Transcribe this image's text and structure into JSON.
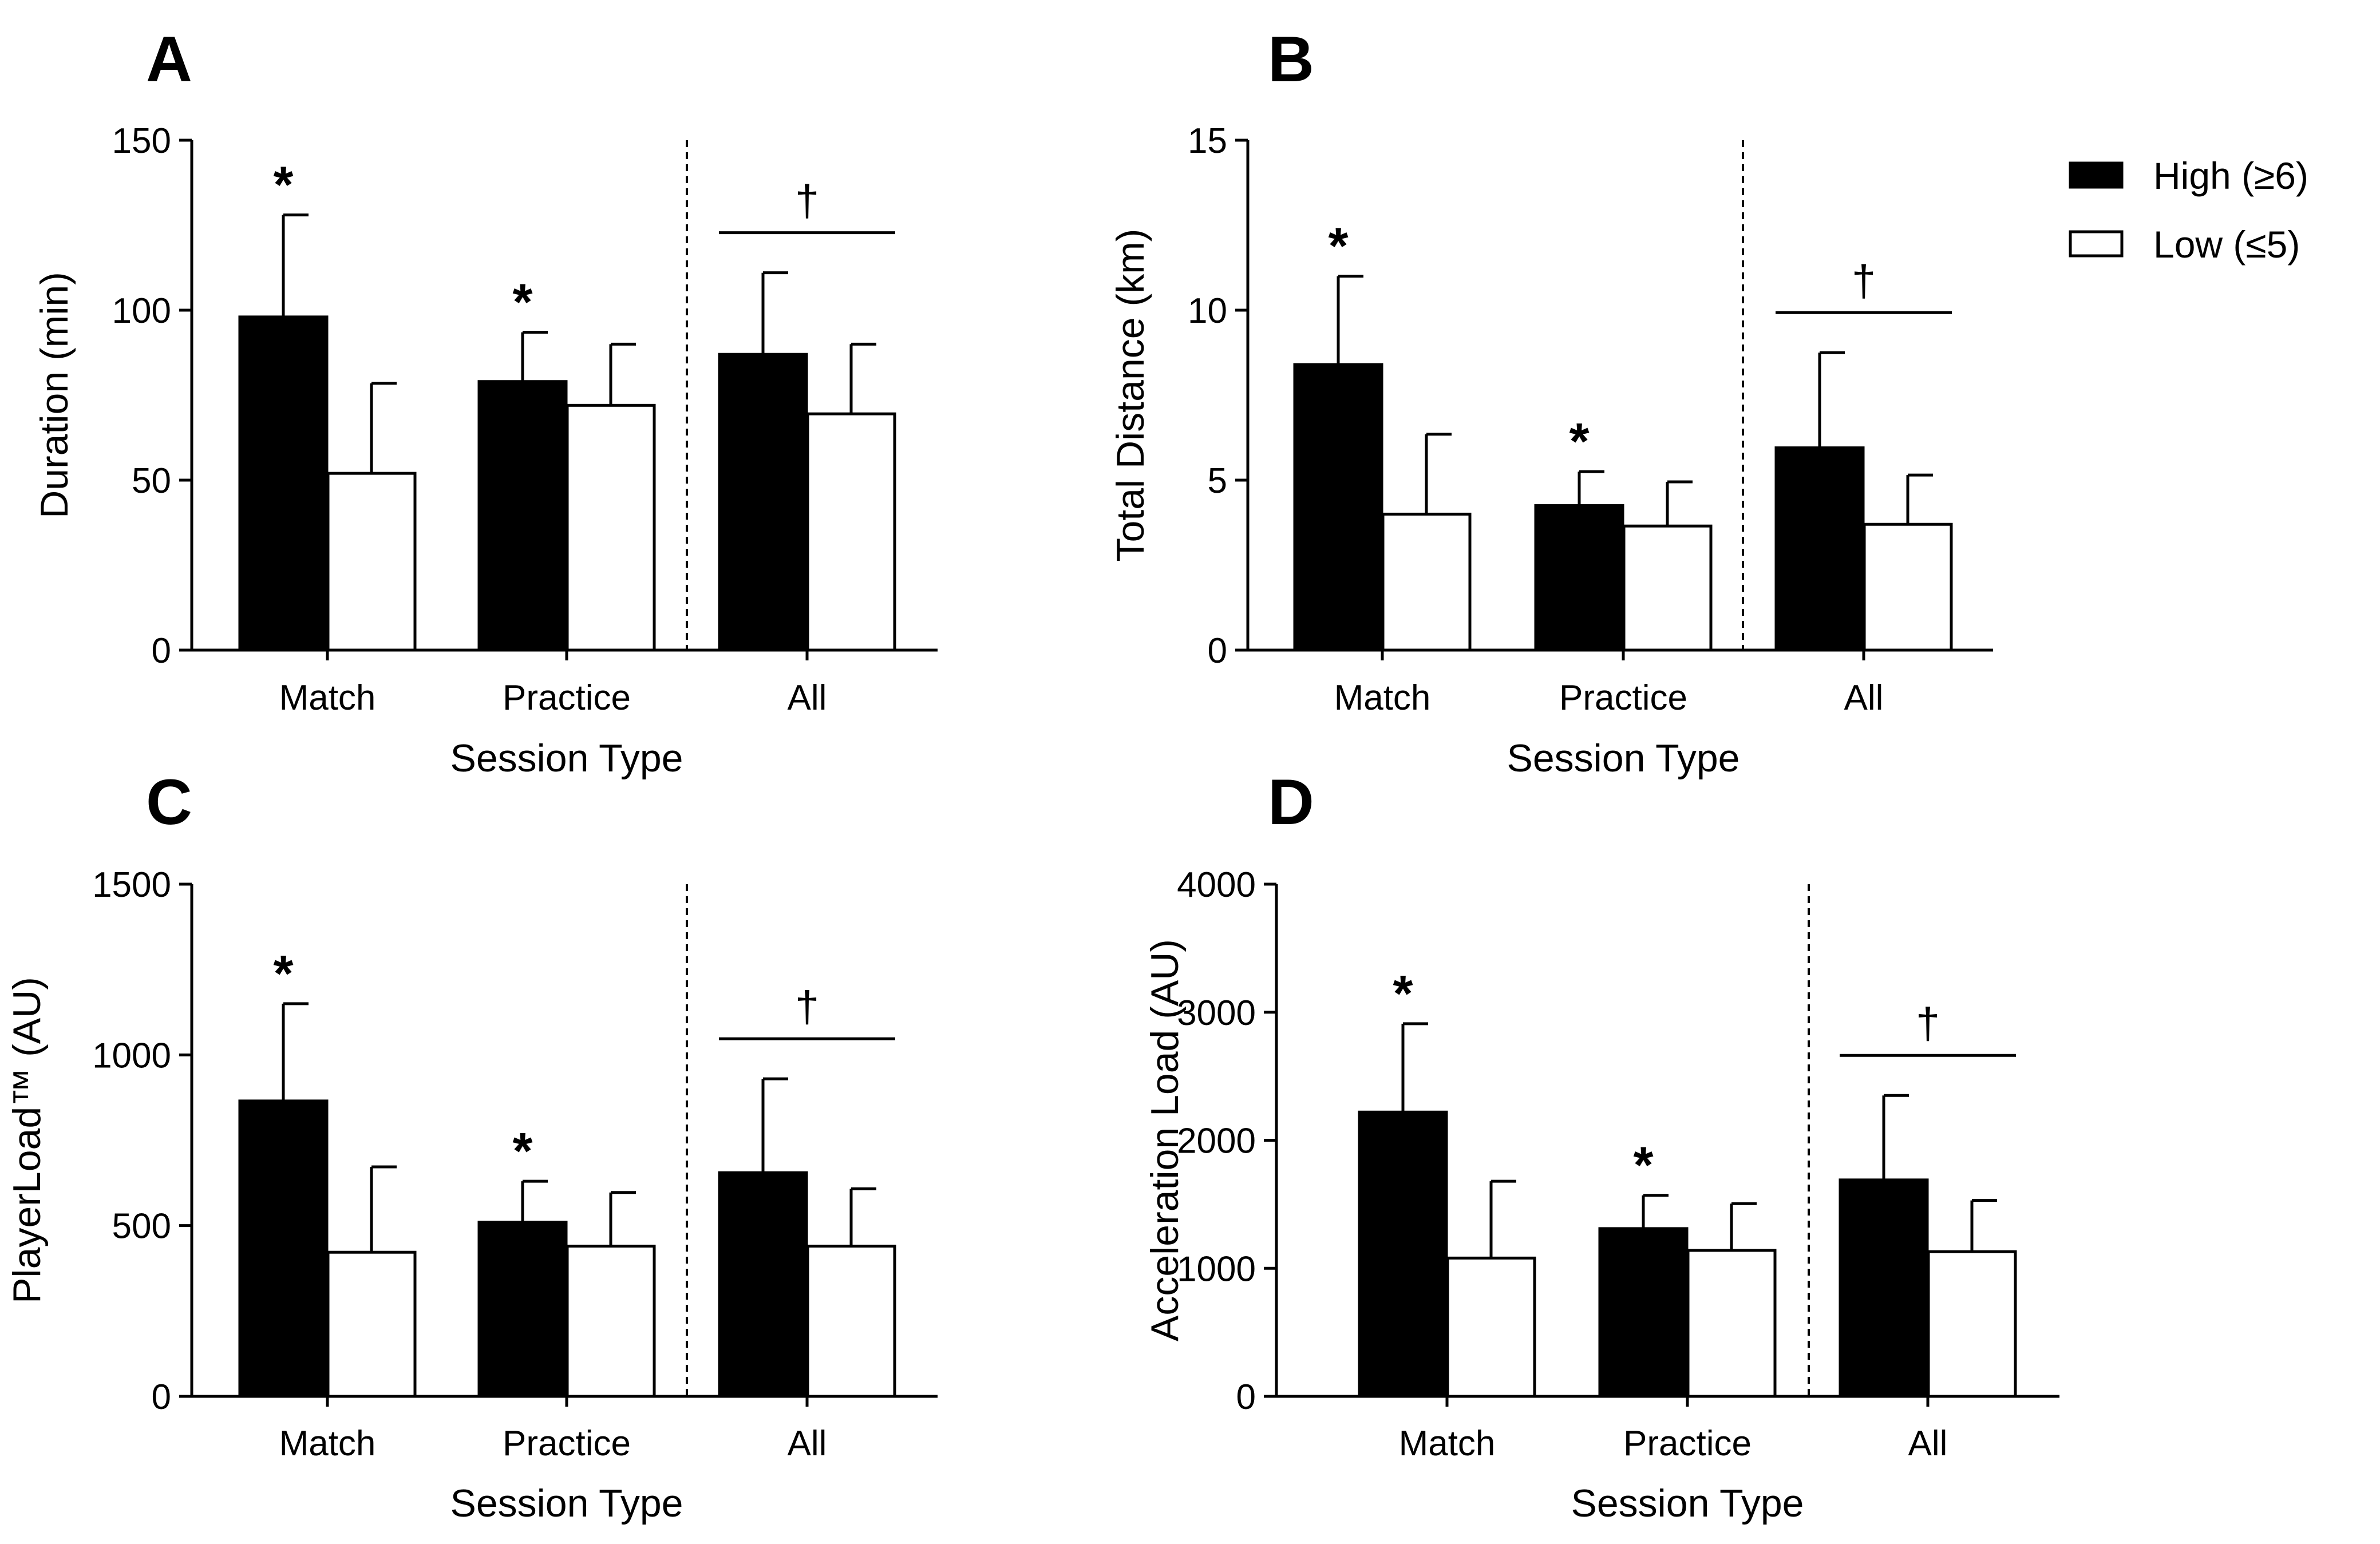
{
  "legend": {
    "entries": [
      {
        "label": "High (≥6)",
        "color": "#000000"
      },
      {
        "label": "Low (≤5)",
        "color": "#ffffff"
      }
    ]
  },
  "chart_data": [
    {
      "panel": "A",
      "type": "bar",
      "title": "",
      "categories": [
        "Match",
        "Practice",
        "All"
      ],
      "xlabel": "Session Type",
      "ylabel": "Duration (min)",
      "ylim": [
        0,
        150
      ],
      "yticks": [
        0,
        50,
        100,
        150
      ],
      "series": [
        {
          "name": "High (≥6)",
          "values": [
            98,
            79,
            87
          ],
          "errors": [
            30,
            14.5,
            24
          ]
        },
        {
          "name": "Low (≤5)",
          "values": [
            52,
            72,
            69.5
          ],
          "errors": [
            26.5,
            18,
            20.5
          ]
        }
      ],
      "significance": [
        "*",
        "*",
        ""
      ],
      "all_marker": "†"
    },
    {
      "panel": "B",
      "type": "bar",
      "title": "",
      "categories": [
        "Match",
        "Practice",
        "All"
      ],
      "xlabel": "Session Type",
      "ylabel": "Total Distance (km)",
      "ylim": [
        0,
        15
      ],
      "yticks": [
        0,
        5,
        10,
        15
      ],
      "series": [
        {
          "name": "High (≥6)",
          "values": [
            8.4,
            4.25,
            5.95
          ],
          "errors": [
            2.6,
            1.0,
            2.8
          ]
        },
        {
          "name": "Low (≤5)",
          "values": [
            4.0,
            3.65,
            3.7
          ],
          "errors": [
            2.35,
            1.3,
            1.45
          ]
        }
      ],
      "significance": [
        "*",
        "*",
        ""
      ],
      "all_marker": "†"
    },
    {
      "panel": "C",
      "type": "bar",
      "title": "",
      "categories": [
        "Match",
        "Practice",
        "All"
      ],
      "xlabel": "Session Type",
      "ylabel": "PlayerLoad™ (AU)",
      "ylim": [
        0,
        1500
      ],
      "yticks": [
        0,
        500,
        1000,
        1500
      ],
      "series": [
        {
          "name": "High (≥6)",
          "values": [
            865,
            510,
            655
          ],
          "errors": [
            285,
            120,
            275
          ]
        },
        {
          "name": "Low (≤5)",
          "values": [
            422,
            440,
            440
          ],
          "errors": [
            250,
            157,
            168
          ]
        }
      ],
      "significance": [
        "*",
        "*",
        ""
      ],
      "all_marker": "†"
    },
    {
      "panel": "D",
      "type": "bar",
      "title": "",
      "categories": [
        "Match",
        "Practice",
        "All"
      ],
      "xlabel": "Session Type",
      "ylabel": "Acceleration Load (AU)",
      "ylim": [
        0,
        4000
      ],
      "yticks": [
        0,
        1000,
        2000,
        3000,
        4000
      ],
      "series": [
        {
          "name": "High (≥6)",
          "values": [
            2220,
            1310,
            1690
          ],
          "errors": [
            690,
            260,
            660
          ]
        },
        {
          "name": "Low (≤5)",
          "values": [
            1080,
            1140,
            1130
          ],
          "errors": [
            600,
            365,
            400
          ]
        }
      ],
      "significance": [
        "*",
        "*",
        ""
      ],
      "all_marker": "†"
    }
  ]
}
